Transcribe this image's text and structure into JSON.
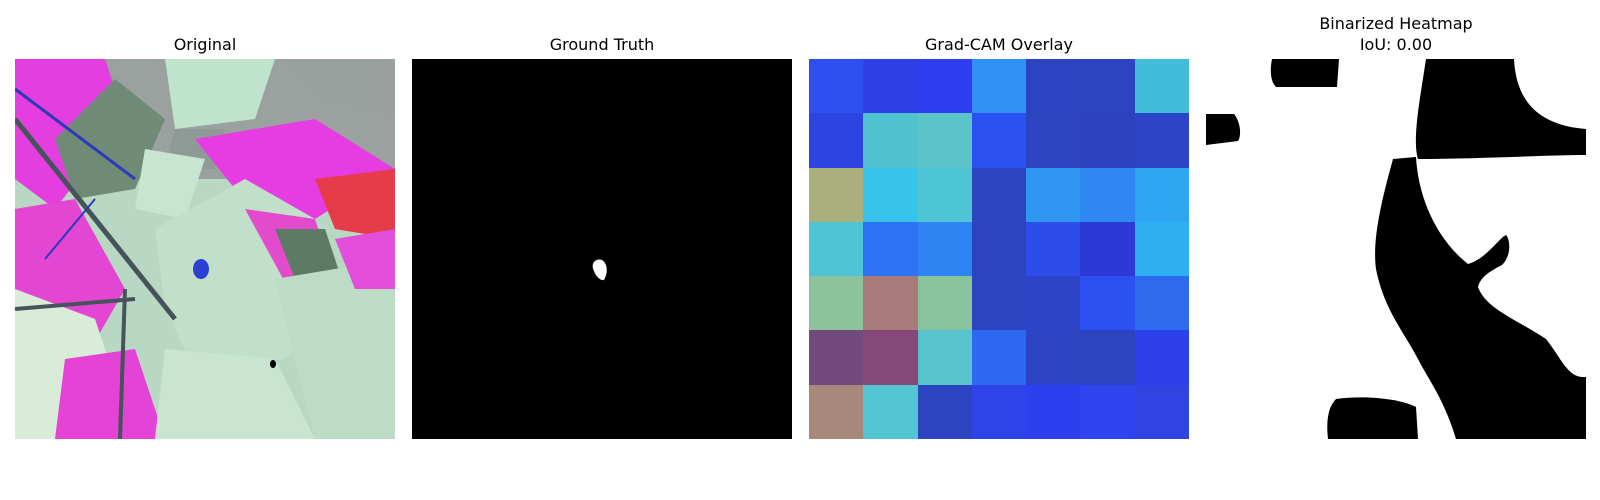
{
  "panels": [
    {
      "title": "Original"
    },
    {
      "title": "Ground Truth"
    },
    {
      "title": "Grad-CAM Overlay"
    },
    {
      "title": "Binarized Heatmap",
      "subtitle": "IoU: 0.00"
    }
  ],
  "gradcam_grid": [
    [
      "#2d4ff0",
      "#2e40e8",
      "#2f3ef0",
      "#3191f5",
      "#2c43c2",
      "#2c44bd",
      "#41bdd9"
    ],
    [
      "#2d45e0",
      "#4fc4d0",
      "#5bc4c8",
      "#2c51f2",
      "#2c44c0",
      "#2c43bd",
      "#2d43c8"
    ],
    [
      "#aab07c",
      "#37c3ec",
      "#4ec5d6",
      "#2c44bf",
      "#2f97f2",
      "#2e87f3",
      "#2ea5f0"
    ],
    [
      "#4fc4d4",
      "#2d72f3",
      "#2e84f2",
      "#2c44bf",
      "#2c4cec",
      "#2d39d6",
      "#2eaff2"
    ],
    [
      "#8cc39a",
      "#a97a7a",
      "#88c39c",
      "#2c44bf",
      "#2d44c8",
      "#2c4ff1",
      "#2e6bec"
    ],
    [
      "#724a7b",
      "#854879",
      "#57c3cc",
      "#2c68f2",
      "#2c44c2",
      "#2c44bd",
      "#2e40ec"
    ],
    [
      "#a9887c",
      "#52c4d2",
      "#2c44bf",
      "#2d45e8",
      "#2d40f0",
      "#2d44f0",
      "#2f44e0"
    ]
  ]
}
